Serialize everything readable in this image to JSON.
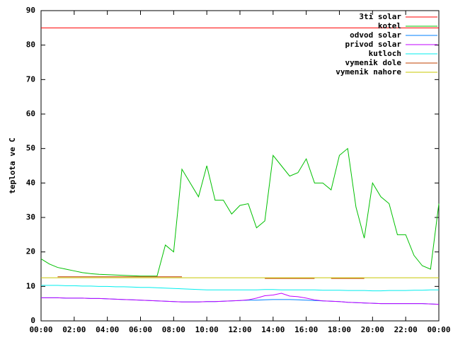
{
  "chart_data": {
    "type": "line",
    "ylabel": "teplota ve C",
    "x": [
      0,
      0.5,
      1,
      1.5,
      2,
      2.5,
      3,
      3.5,
      4,
      4.5,
      5,
      5.5,
      6,
      6.5,
      7,
      7.5,
      8,
      8.5,
      9,
      9.5,
      10,
      10.5,
      11,
      11.5,
      12,
      12.5,
      13,
      13.5,
      14,
      14.5,
      15,
      15.5,
      16,
      16.5,
      17,
      17.5,
      18,
      18.5,
      19,
      19.5,
      20,
      20.5,
      21,
      21.5,
      22,
      22.5,
      23,
      23.5,
      24
    ],
    "xlim": [
      0,
      24
    ],
    "xticks": [
      {
        "value": 0,
        "label": "00:00"
      },
      {
        "value": 2,
        "label": "02:00"
      },
      {
        "value": 4,
        "label": "04:00"
      },
      {
        "value": 6,
        "label": "06:00"
      },
      {
        "value": 8,
        "label": "08:00"
      },
      {
        "value": 10,
        "label": "10:00"
      },
      {
        "value": 12,
        "label": "12:00"
      },
      {
        "value": 14,
        "label": "14:00"
      },
      {
        "value": 16,
        "label": "16:00"
      },
      {
        "value": 18,
        "label": "18:00"
      },
      {
        "value": 20,
        "label": "20:00"
      },
      {
        "value": 22,
        "label": "22:00"
      },
      {
        "value": 24,
        "label": "00:00"
      }
    ],
    "ylim": [
      0,
      90
    ],
    "yticks": [
      0,
      10,
      20,
      30,
      40,
      50,
      60,
      70,
      80,
      90
    ],
    "legend": "upper-right",
    "series": [
      {
        "name": "3ti solar",
        "color": "#ff0000",
        "values": [
          85,
          85,
          85,
          85,
          85,
          85,
          85,
          85,
          85,
          85,
          85,
          85,
          85,
          85,
          85,
          85,
          85,
          85,
          85,
          85,
          85,
          85,
          85,
          85,
          85,
          85,
          85,
          85,
          85,
          85,
          85,
          85,
          85,
          85,
          85,
          85,
          85,
          85,
          85,
          85,
          85,
          85,
          85,
          85,
          85,
          85,
          85,
          85,
          85
        ]
      },
      {
        "name": "kotel",
        "color": "#00c000",
        "values": [
          18,
          16.5,
          15.5,
          15,
          14.5,
          14,
          13.7,
          13.5,
          13.4,
          13.3,
          13.2,
          13.1,
          13,
          13,
          13,
          22,
          20,
          44,
          40,
          36,
          45,
          35,
          35,
          31,
          33.5,
          34,
          27,
          29,
          48,
          45,
          42,
          43,
          47,
          40,
          40,
          38,
          48,
          50,
          33,
          24,
          40,
          36,
          34,
          25,
          25,
          19,
          16,
          15,
          34
        ]
      },
      {
        "name": "odvod solar",
        "color": "#0080ff",
        "values": [
          6.7,
          6.7,
          6.7,
          6.6,
          6.6,
          6.6,
          6.5,
          6.5,
          6.4,
          6.3,
          6.2,
          6.1,
          6.0,
          5.9,
          5.8,
          5.7,
          5.6,
          5.5,
          5.5,
          5.5,
          5.6,
          5.6,
          5.7,
          5.8,
          5.9,
          6.0,
          6.0,
          6.1,
          6.2,
          6.2,
          6.2,
          6.1,
          6.0,
          5.9,
          5.8,
          5.7,
          5.6,
          5.4,
          5.3,
          5.2,
          5.1,
          5.0,
          5.0,
          5.0,
          5.0,
          5.0,
          5.0,
          4.9,
          4.8
        ]
      },
      {
        "name": "privod solar",
        "color": "#c000ff",
        "values": [
          6.7,
          6.7,
          6.7,
          6.6,
          6.6,
          6.6,
          6.5,
          6.5,
          6.4,
          6.3,
          6.2,
          6.1,
          6.0,
          5.9,
          5.8,
          5.7,
          5.6,
          5.5,
          5.5,
          5.5,
          5.6,
          5.6,
          5.7,
          5.8,
          5.9,
          6.1,
          6.6,
          7.3,
          7.5,
          8.0,
          7.2,
          7.0,
          6.6,
          6.1,
          5.8,
          5.7,
          5.6,
          5.4,
          5.3,
          5.2,
          5.1,
          5.0,
          5.0,
          5.0,
          5.0,
          5.0,
          5.0,
          4.9,
          4.8
        ]
      },
      {
        "name": "kutloch",
        "color": "#00eeee",
        "values": [
          10.3,
          10.3,
          10.3,
          10.2,
          10.2,
          10.1,
          10.1,
          10.0,
          10.0,
          9.9,
          9.9,
          9.8,
          9.7,
          9.7,
          9.6,
          9.5,
          9.4,
          9.3,
          9.2,
          9.1,
          9.0,
          9.0,
          9.0,
          9.0,
          9.0,
          9.0,
          9.0,
          9.1,
          9.1,
          9.0,
          9.0,
          9.0,
          9.0,
          9.0,
          8.9,
          8.9,
          8.9,
          8.8,
          8.8,
          8.8,
          8.7,
          8.7,
          8.8,
          8.8,
          8.8,
          8.9,
          8.9,
          9.0,
          9.0
        ]
      },
      {
        "name": "vymenik dole",
        "color": "#c04000",
        "values": [
          null,
          null,
          12.8,
          12.8,
          12.8,
          12.8,
          12.8,
          12.8,
          12.8,
          12.8,
          12.8,
          12.8,
          12.8,
          12.8,
          12.8,
          12.8,
          12.8,
          12.8,
          null,
          null,
          null,
          null,
          null,
          null,
          null,
          null,
          null,
          12.3,
          12.3,
          12.3,
          12.3,
          12.3,
          12.3,
          12.3,
          null,
          12.3,
          12.3,
          12.3,
          12.3,
          12.3,
          null,
          null,
          null,
          null,
          null,
          null,
          null,
          null,
          null
        ]
      },
      {
        "name": "vymenik nahore",
        "color": "#c8c800",
        "values": [
          12.5,
          12.5,
          12.5,
          12.5,
          12.5,
          12.5,
          12.5,
          12.5,
          12.5,
          12.5,
          12.5,
          12.5,
          12.5,
          12.5,
          12.5,
          12.5,
          12.5,
          12.5,
          12.5,
          12.5,
          12.5,
          12.5,
          12.5,
          12.5,
          12.5,
          12.5,
          12.5,
          12.5,
          12.5,
          12.5,
          12.5,
          12.5,
          12.5,
          12.5,
          12.5,
          12.5,
          12.5,
          12.5,
          12.5,
          12.5,
          12.5,
          12.5,
          12.5,
          12.5,
          12.5,
          12.5,
          12.5,
          12.5,
          12.5
        ]
      }
    ]
  }
}
